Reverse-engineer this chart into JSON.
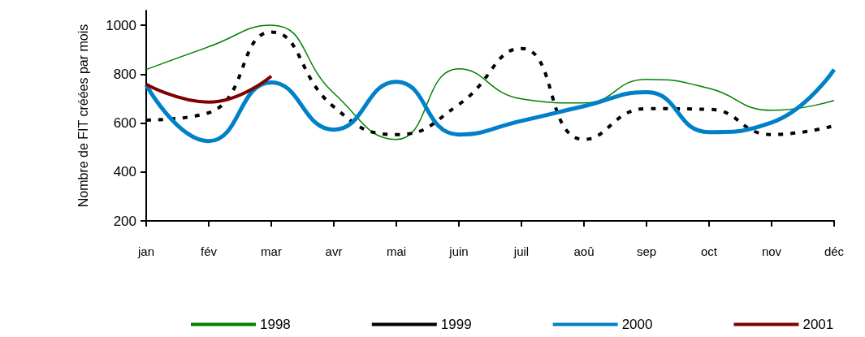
{
  "chart_data": {
    "type": "line",
    "ylabel": "Nombre de FIT créées par mois",
    "categories": [
      "jan",
      "fév",
      "mar",
      "avr",
      "mai",
      "juin",
      "juil",
      "aoû",
      "sep",
      "oct",
      "nov",
      "déc"
    ],
    "series": [
      {
        "name": "1998",
        "color": "#008000",
        "line_style": "solid",
        "values": [
          819,
          912,
          1000,
          722,
          533,
          822,
          699,
          682,
          779,
          742,
          652,
          692
        ]
      },
      {
        "name": "1999",
        "color": "#000000",
        "line_style": "dashed",
        "values": [
          612,
          642,
          972,
          666,
          553,
          676,
          905,
          533,
          659,
          656,
          553,
          589
        ]
      },
      {
        "name": "2000",
        "color": "#0080c8",
        "line_style": "solid",
        "values": [
          756,
          526,
          766,
          573,
          769,
          553,
          609,
          669,
          726,
          563,
          602,
          819
        ]
      },
      {
        "name": "2001",
        "color": "#800000",
        "line_style": "solid",
        "values": [
          759,
          686,
          792,
          null,
          null,
          null,
          null,
          null,
          null,
          null,
          null,
          null
        ]
      }
    ],
    "ylim": [
      200,
      1060
    ],
    "yticks": [
      200,
      400,
      600,
      800,
      1000
    ],
    "grid": false,
    "legend": "bottom",
    "marker": "none"
  }
}
